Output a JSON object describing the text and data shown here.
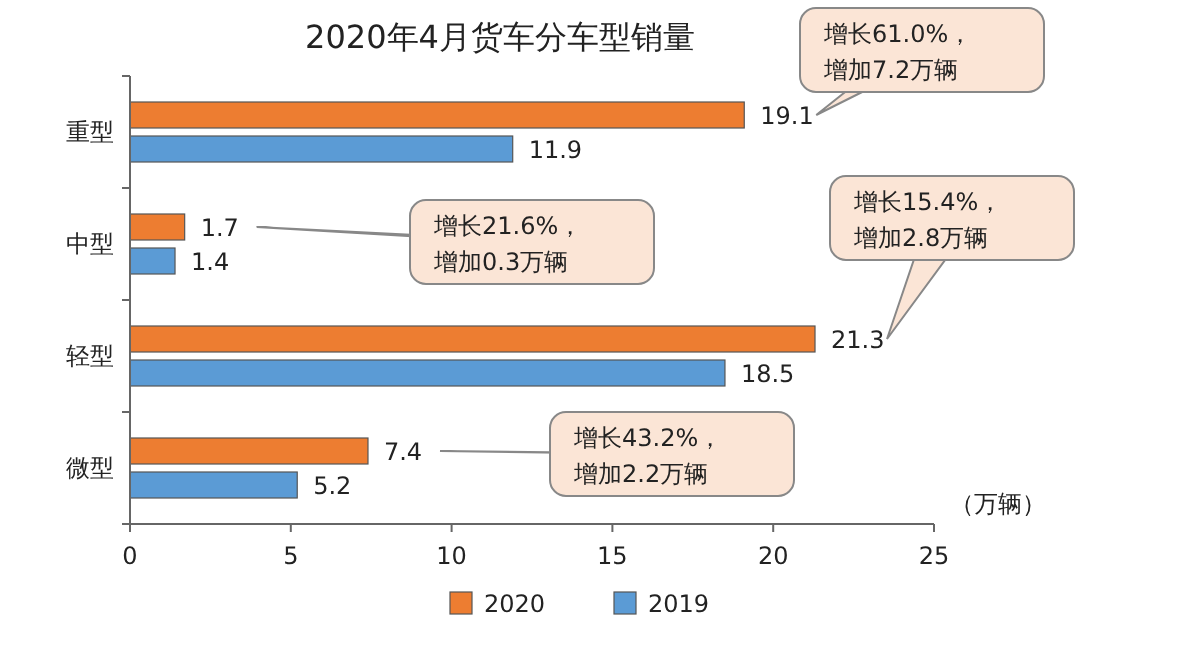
{
  "chart_data": {
    "type": "bar",
    "orientation": "horizontal",
    "title": "2020年4月货车分车型销量",
    "xlabel": "（万辆）",
    "categories": [
      "重型",
      "中型",
      "轻型",
      "微型"
    ],
    "series": [
      {
        "name": "2020",
        "color": "#ed7d31",
        "values": [
          19.1,
          1.7,
          21.3,
          7.4
        ]
      },
      {
        "name": "2019",
        "color": "#5b9bd5",
        "values": [
          11.9,
          1.4,
          18.5,
          5.2
        ]
      }
    ],
    "xlim": [
      0,
      25
    ],
    "xticks": [
      0,
      5,
      10,
      15,
      20,
      25
    ],
    "data_labels": true,
    "legend": "bottom",
    "grid": false,
    "annotations": [
      "增长61.0%，增加7.2万辆",
      "增长21.6%，增加0.3万辆",
      "增长15.4%，增加2.8万辆",
      "增长43.2%，增加2.2万辆"
    ]
  }
}
